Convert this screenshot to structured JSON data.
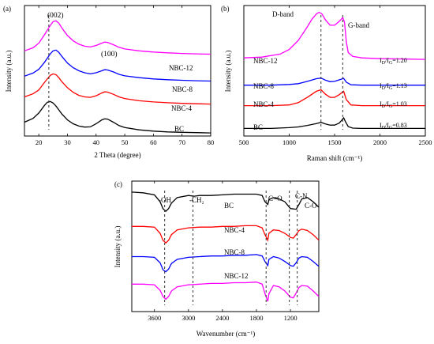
{
  "chart_data": [
    {
      "panel_label": "(a)",
      "type": "line",
      "xlabel": "2 Theta (degree)",
      "ylabel": "Intensity (a.u.)",
      "xlim": [
        15,
        80
      ],
      "xticks": [
        20,
        30,
        40,
        50,
        60,
        70,
        80
      ],
      "series": [
        {
          "name": "NBC-12",
          "color": "#ff00ff",
          "x": [
            15,
            18,
            20,
            22,
            24,
            25,
            26,
            27,
            28,
            30,
            32,
            34,
            36,
            38,
            40,
            42,
            43,
            44,
            46,
            48,
            50,
            55,
            60,
            65,
            70,
            75,
            80
          ],
          "y": [
            5.55,
            5.75,
            6.05,
            6.6,
            7.2,
            7.45,
            7.5,
            7.35,
            7.05,
            6.55,
            6.2,
            5.98,
            5.85,
            5.8,
            5.9,
            6.05,
            6.12,
            6.1,
            5.95,
            5.78,
            5.67,
            5.55,
            5.47,
            5.42,
            5.38,
            5.35,
            5.33
          ]
        },
        {
          "name": "NBC-8",
          "color": "#0000ff",
          "x": [
            15,
            18,
            20,
            22,
            24,
            25,
            26,
            27,
            28,
            30,
            32,
            34,
            36,
            38,
            40,
            42,
            43,
            44,
            46,
            48,
            50,
            55,
            60,
            65,
            70,
            75,
            80
          ],
          "y": [
            3.9,
            4.1,
            4.35,
            4.8,
            5.35,
            5.55,
            5.6,
            5.45,
            5.2,
            4.75,
            4.45,
            4.25,
            4.12,
            4.05,
            4.12,
            4.25,
            4.32,
            4.3,
            4.18,
            4.02,
            3.92,
            3.8,
            3.72,
            3.67,
            3.63,
            3.6,
            3.58
          ]
        },
        {
          "name": "NBC-4",
          "color": "#ff0000",
          "x": [
            15,
            18,
            20,
            22,
            24,
            25,
            26,
            27,
            28,
            30,
            32,
            34,
            36,
            38,
            40,
            42,
            43,
            44,
            46,
            48,
            50,
            55,
            60,
            65,
            70,
            75,
            80
          ],
          "y": [
            2.55,
            2.75,
            3.0,
            3.5,
            3.95,
            4.05,
            4.0,
            3.8,
            3.55,
            3.15,
            2.85,
            2.65,
            2.55,
            2.52,
            2.62,
            2.8,
            2.88,
            2.86,
            2.72,
            2.55,
            2.44,
            2.3,
            2.22,
            2.17,
            2.13,
            2.1,
            2.08
          ]
        },
        {
          "name": "BC",
          "color": "#000000",
          "x": [
            15,
            18,
            20,
            22,
            23,
            24,
            25,
            26,
            27,
            28,
            30,
            32,
            34,
            36,
            38,
            40,
            42,
            43,
            44,
            46,
            48,
            50,
            55,
            60,
            65,
            70,
            75,
            80
          ],
          "y": [
            0.9,
            1.15,
            1.5,
            2.0,
            2.2,
            2.25,
            2.15,
            1.95,
            1.7,
            1.45,
            1.05,
            0.8,
            0.65,
            0.58,
            0.6,
            0.8,
            1.05,
            1.12,
            1.1,
            0.9,
            0.68,
            0.55,
            0.4,
            0.32,
            0.27,
            0.24,
            0.22,
            0.2
          ]
        }
      ],
      "annotations": [
        "(002)",
        "(100)"
      ],
      "dashed_lines_x": [
        23.5
      ]
    },
    {
      "panel_label": "(b)",
      "type": "line",
      "xlabel": "Raman shift (cm⁻¹)",
      "ylabel": "Intensity (a.u.)",
      "xlim": [
        500,
        2500
      ],
      "xticks": [
        500,
        1000,
        1500,
        2000,
        2500
      ],
      "series": [
        {
          "name": "NBC-12",
          "color": "#ff00ff",
          "ratio": "I_D/I_G=1.20",
          "x": [
            500,
            700,
            900,
            1000,
            1100,
            1200,
            1250,
            1300,
            1330,
            1360,
            1400,
            1450,
            1500,
            1550,
            1590,
            1610,
            1630,
            1650,
            1700,
            1800,
            2000,
            2200,
            2500
          ],
          "y": [
            5.15,
            5.2,
            5.4,
            5.7,
            6.3,
            7.2,
            7.7,
            8.05,
            8.15,
            8.05,
            7.65,
            7.3,
            7.3,
            7.55,
            7.8,
            7.5,
            6.2,
            5.5,
            5.25,
            5.15,
            5.1,
            5.08,
            5.05
          ]
        },
        {
          "name": "NBC-8",
          "color": "#0000ff",
          "ratio": "I_D/I_G=1.13",
          "x": [
            500,
            800,
            1000,
            1100,
            1200,
            1300,
            1350,
            1400,
            1450,
            1500,
            1550,
            1600,
            1630,
            1680,
            1800,
            2000,
            2500
          ],
          "y": [
            3.35,
            3.35,
            3.4,
            3.45,
            3.6,
            3.78,
            3.82,
            3.68,
            3.58,
            3.6,
            3.7,
            3.8,
            3.55,
            3.38,
            3.35,
            3.35,
            3.35
          ]
        },
        {
          "name": "NBC-4",
          "color": "#ff0000",
          "ratio": "I_D/I_G=1.03",
          "x": [
            500,
            800,
            1000,
            1100,
            1200,
            1300,
            1350,
            1400,
            1450,
            1500,
            1550,
            1600,
            1630,
            1680,
            1800,
            2000,
            2500
          ],
          "y": [
            2.0,
            2.0,
            2.05,
            2.2,
            2.55,
            2.95,
            3.05,
            2.75,
            2.55,
            2.55,
            2.72,
            2.95,
            2.4,
            2.05,
            2.0,
            2.0,
            2.0
          ]
        },
        {
          "name": "BC",
          "color": "#000000",
          "ratio": "I_D/I_G=0.83",
          "x": [
            500,
            800,
            1000,
            1100,
            1200,
            1300,
            1350,
            1400,
            1450,
            1500,
            1550,
            1580,
            1600,
            1620,
            1650,
            1700,
            1800,
            2000,
            2500
          ],
          "y": [
            0.5,
            0.5,
            0.55,
            0.6,
            0.7,
            0.82,
            0.9,
            0.8,
            0.72,
            0.72,
            0.85,
            1.05,
            1.2,
            0.95,
            0.62,
            0.52,
            0.5,
            0.5,
            0.5
          ]
        }
      ],
      "annotations": [
        "D-band",
        "G-band"
      ],
      "dashed_lines_x": [
        1350,
        1590
      ]
    },
    {
      "panel_label": "(c)",
      "type": "line",
      "xlabel": "Wavenumber (cm⁻¹)",
      "ylabel": "Intensity (a.u.)",
      "xlim": [
        4000,
        700
      ],
      "xticks": [
        3600,
        3000,
        2400,
        1800,
        1200
      ],
      "series": [
        {
          "name": "BC",
          "color": "#000000",
          "x": [
            4000,
            3800,
            3600,
            3500,
            3450,
            3400,
            3350,
            3300,
            3200,
            3000,
            2900,
            2800,
            2600,
            2400,
            2200,
            2000,
            1800,
            1700,
            1650,
            1600,
            1580,
            1500,
            1400,
            1300,
            1200,
            1100,
            1050,
            1000,
            900,
            800,
            700
          ],
          "y": [
            8.1,
            8.05,
            7.9,
            7.4,
            6.9,
            6.7,
            6.9,
            7.3,
            7.7,
            7.85,
            7.8,
            7.85,
            7.85,
            7.9,
            7.95,
            7.95,
            7.95,
            7.85,
            7.4,
            7.2,
            7.55,
            7.7,
            7.6,
            7.4,
            6.9,
            6.85,
            7.2,
            7.6,
            7.7,
            7.4,
            7.0
          ]
        },
        {
          "name": "NBC-4",
          "color": "#ff0000",
          "x": [
            4000,
            3800,
            3600,
            3500,
            3450,
            3400,
            3350,
            3300,
            3200,
            3000,
            2800,
            2600,
            2400,
            2200,
            2000,
            1800,
            1700,
            1650,
            1600,
            1580,
            1500,
            1400,
            1300,
            1200,
            1150,
            1100,
            1050,
            1000,
            900,
            800,
            700
          ],
          "y": [
            5.6,
            5.6,
            5.55,
            5.1,
            4.6,
            4.4,
            4.6,
            5.0,
            5.35,
            5.5,
            5.55,
            5.55,
            5.6,
            5.6,
            5.65,
            5.65,
            5.5,
            5.0,
            4.6,
            5.1,
            5.35,
            5.3,
            5.1,
            4.8,
            4.75,
            5.0,
            5.3,
            5.4,
            5.3,
            5.0,
            4.6
          ]
        },
        {
          "name": "NBC-8",
          "color": "#0000ff",
          "x": [
            4000,
            3800,
            3600,
            3500,
            3450,
            3400,
            3350,
            3300,
            3200,
            3000,
            2800,
            2600,
            2400,
            2200,
            2000,
            1800,
            1700,
            1650,
            1600,
            1580,
            1500,
            1400,
            1300,
            1200,
            1150,
            1100,
            1050,
            1000,
            900,
            800,
            700
          ],
          "y": [
            3.4,
            3.4,
            3.35,
            2.95,
            2.45,
            2.3,
            2.5,
            2.9,
            3.2,
            3.35,
            3.4,
            3.45,
            3.45,
            3.5,
            3.5,
            3.55,
            3.45,
            3.05,
            2.75,
            3.2,
            3.4,
            3.3,
            3.05,
            2.75,
            2.7,
            2.95,
            3.3,
            3.4,
            3.35,
            3.05,
            2.7
          ]
        },
        {
          "name": "NBC-12",
          "color": "#ff00ff",
          "x": [
            4000,
            3800,
            3600,
            3500,
            3450,
            3400,
            3350,
            3300,
            3200,
            3000,
            2800,
            2600,
            2400,
            2200,
            2000,
            1800,
            1700,
            1650,
            1600,
            1580,
            1500,
            1400,
            1300,
            1200,
            1150,
            1100,
            1050,
            1000,
            900,
            800,
            700
          ],
          "y": [
            1.4,
            1.4,
            1.35,
            0.95,
            0.5,
            0.3,
            0.5,
            0.9,
            1.2,
            1.35,
            1.4,
            1.45,
            1.45,
            1.5,
            1.5,
            1.55,
            1.4,
            0.7,
            0.15,
            0.7,
            1.3,
            1.2,
            0.9,
            0.45,
            0.4,
            0.75,
            1.15,
            1.3,
            1.25,
            0.9,
            0.5
          ]
        }
      ],
      "annotations": [
        "-OH",
        "-CH₂",
        "C=O",
        "C-N",
        "C-O"
      ],
      "dashed_lines_x": [
        3420,
        2920,
        1630,
        1220,
        1080
      ]
    }
  ]
}
